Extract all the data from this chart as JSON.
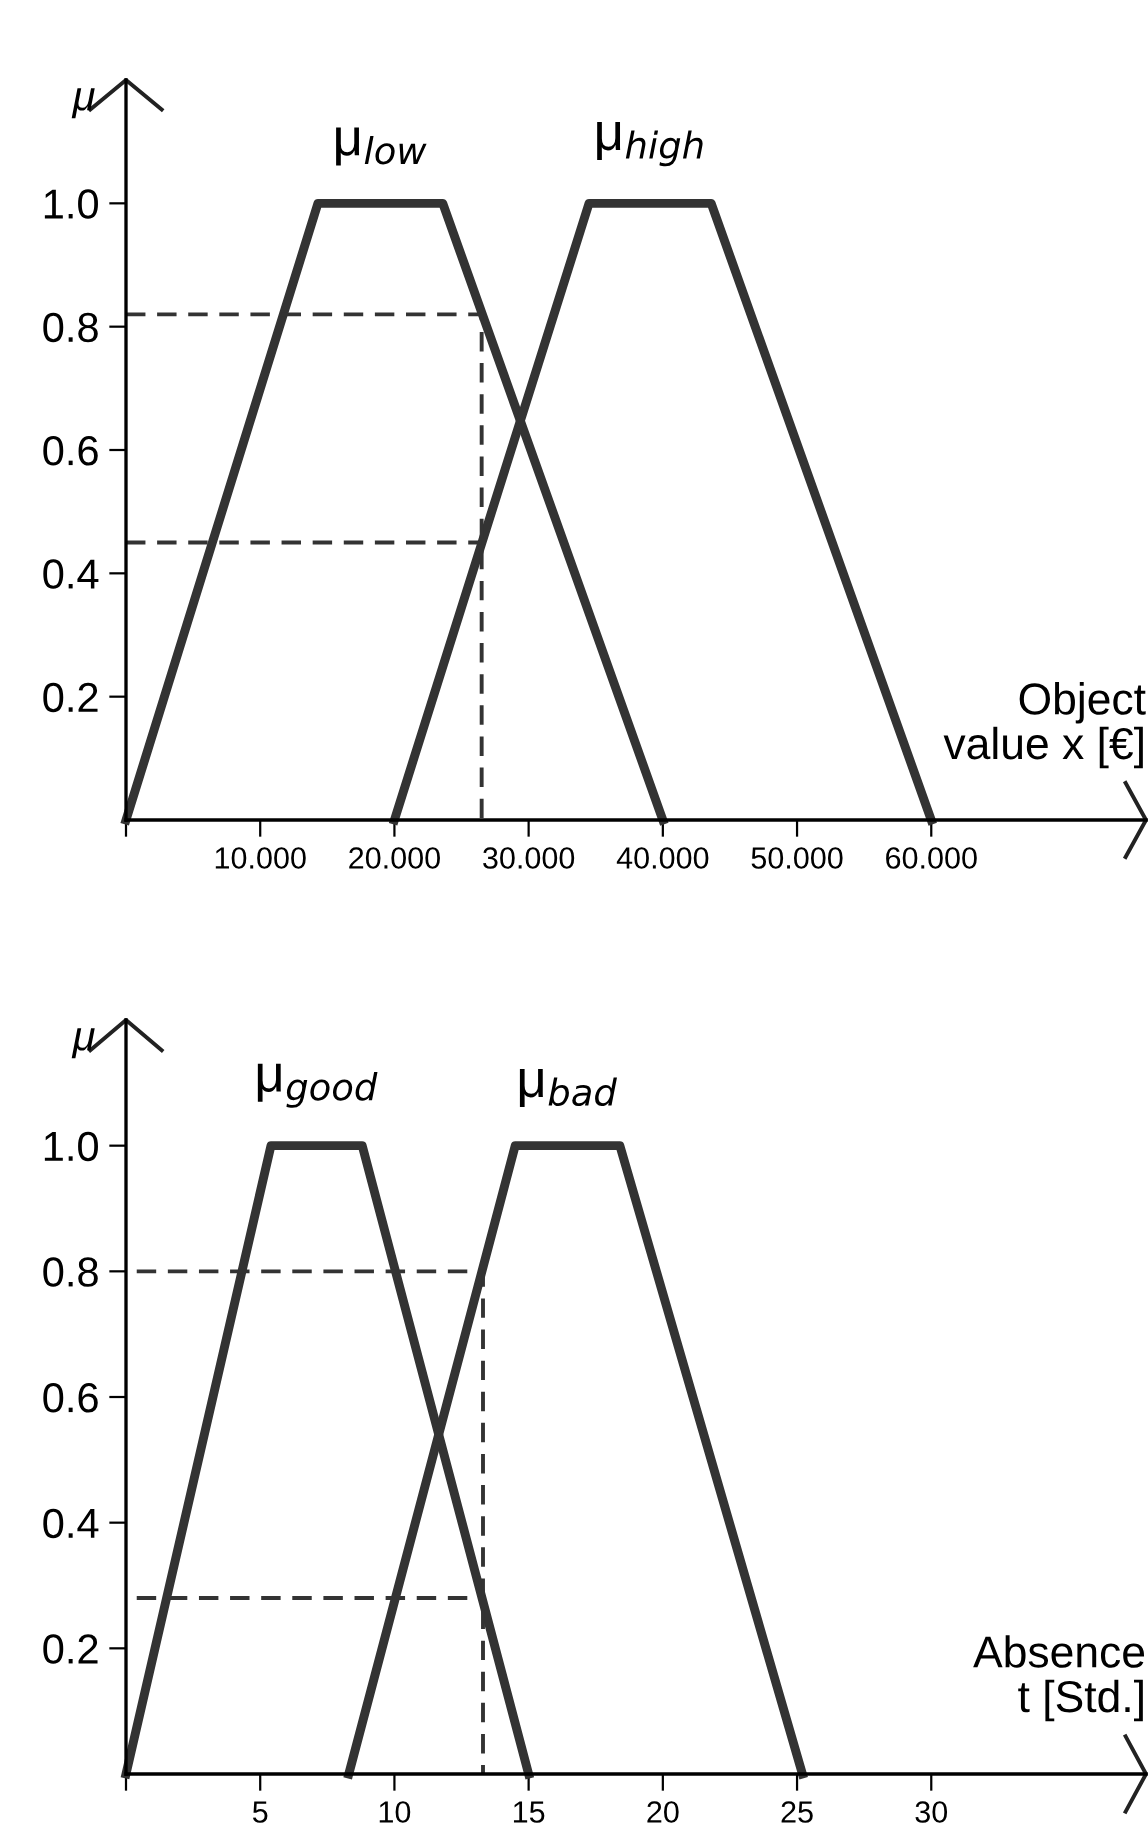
{
  "chart_data": [
    {
      "type": "line",
      "xlabel": "Object\nvalue x [€]",
      "ylabel": "μ",
      "xlim": [
        0,
        76
      ],
      "ylim": [
        0,
        1.2
      ],
      "xticks": [
        {
          "value": 0,
          "label": null
        },
        {
          "value": 10,
          "label": "10.000"
        },
        {
          "value": 20,
          "label": "20.000"
        },
        {
          "value": 30,
          "label": "30.000"
        },
        {
          "value": 40,
          "label": "40.000"
        },
        {
          "value": 50,
          "label": "50.000"
        },
        {
          "value": 60,
          "label": "60.000"
        }
      ],
      "yticks": [
        0.2,
        0.4,
        0.6,
        0.8,
        {
          "value": 1.0,
          "label": "1.0"
        }
      ],
      "grid": false,
      "legend": false,
      "series": [
        {
          "name": "μ$_{low}$",
          "color": "#333333",
          "x": [
            0,
            14.3,
            23.6,
            40
          ],
          "values": [
            0,
            1,
            1,
            0
          ]
        },
        {
          "name": "μ$_{high}$",
          "color": "#333333",
          "x": [
            20,
            34.5,
            43.6,
            60
          ],
          "values": [
            0,
            1,
            1,
            0
          ]
        },
        {
          "color": "#333333",
          "line_style": "dashed",
          "x": [
            0,
            26.5,
            26.5
          ],
          "values": [
            0.82,
            0.82,
            0
          ]
        },
        {
          "color": "#333333",
          "line_style": "dashed",
          "x": [
            0,
            26.5
          ],
          "values": [
            0.45,
            0.45
          ]
        }
      ]
    },
    {
      "type": "line",
      "xlabel": "Absence\nt [Std.]",
      "ylabel": "μ",
      "xlim": [
        0,
        38
      ],
      "ylim": [
        0,
        1.2
      ],
      "xticks": [
        {
          "value": 0,
          "label": null
        },
        5,
        10,
        15,
        20,
        25,
        30
      ],
      "yticks": [
        0.2,
        0.4,
        0.6,
        0.8,
        {
          "value": 1.0,
          "label": "1.0"
        }
      ],
      "grid": false,
      "legend": false,
      "series": [
        {
          "name": "μ$_{good}$",
          "color": "#333333",
          "x": [
            0,
            5.4,
            8.8,
            15
          ],
          "values": [
            0,
            1,
            1,
            0
          ]
        },
        {
          "name": "μ$_{bad}$",
          "color": "#333333",
          "x": [
            8.3,
            14.5,
            18.4,
            25.2
          ],
          "values": [
            0,
            1,
            1,
            0
          ]
        },
        {
          "color": "#333333",
          "line_style": "dashed",
          "x": [
            0.4,
            13.3,
            13.3
          ],
          "values": [
            0.8,
            0.8,
            0
          ]
        },
        {
          "color": "#333333",
          "line_style": "dashed",
          "x": [
            0.4,
            13.3
          ],
          "values": [
            0.28,
            0.28
          ]
        }
      ]
    }
  ]
}
